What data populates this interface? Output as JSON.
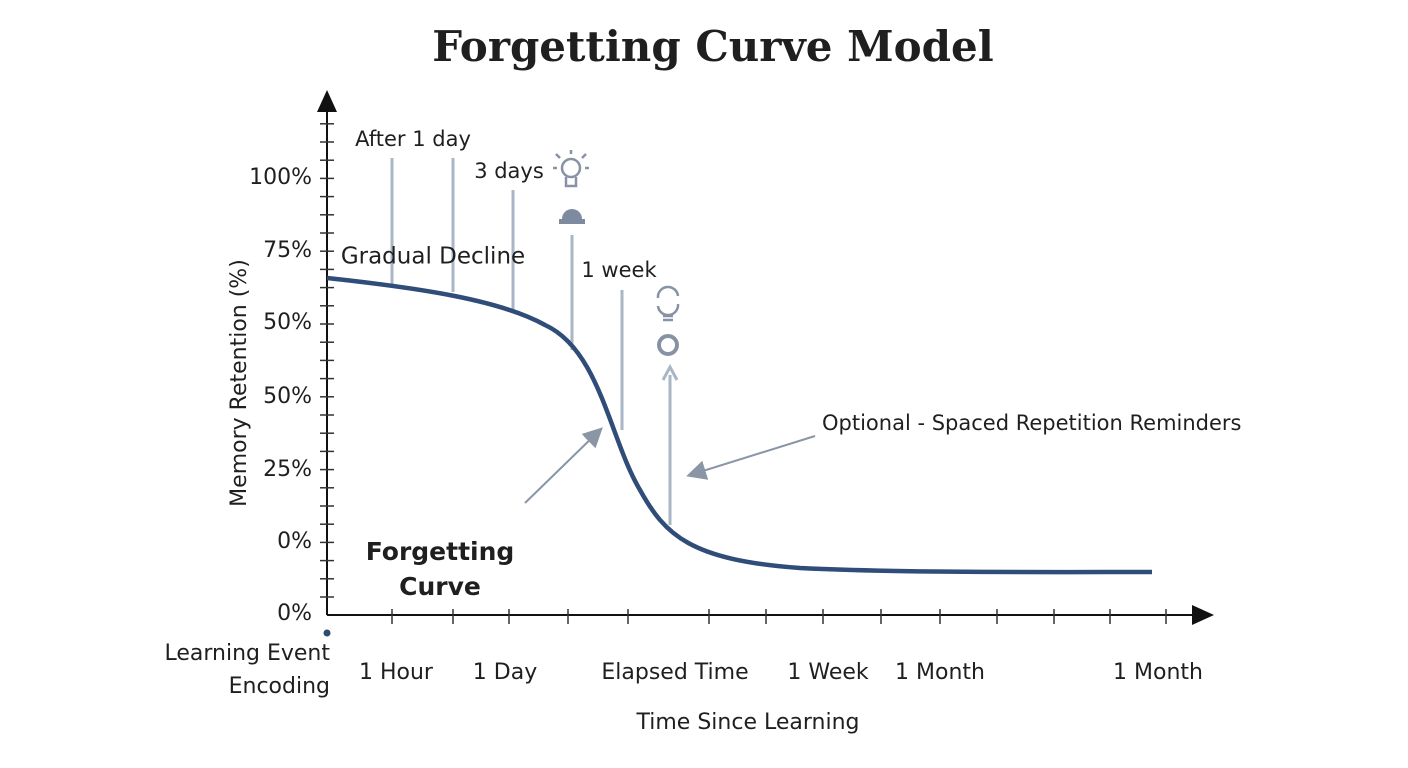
{
  "title": "Forgetting Curve Model",
  "y_axis": {
    "label": "Memory Retention (%)",
    "ticks": [
      "100%",
      "75%",
      "50%",
      "50%",
      "25%",
      "0%",
      "0%"
    ]
  },
  "x_axis": {
    "label": "Time Since Learning",
    "origin": [
      "Learning Event",
      "Encoding"
    ],
    "ticks": [
      "1 Hour",
      "1 Day",
      "Elapsed Time",
      "1 Week",
      "1 Month",
      "1 Month"
    ]
  },
  "annotations": {
    "after_1_day": "After 1 day",
    "three_days": "3 days",
    "gradual_decline": "Gradual Decline",
    "one_week": "1 week",
    "reminders": "Optional - Spaced Repetition Reminders",
    "curve": [
      "Forgetting",
      "Curve"
    ]
  }
}
